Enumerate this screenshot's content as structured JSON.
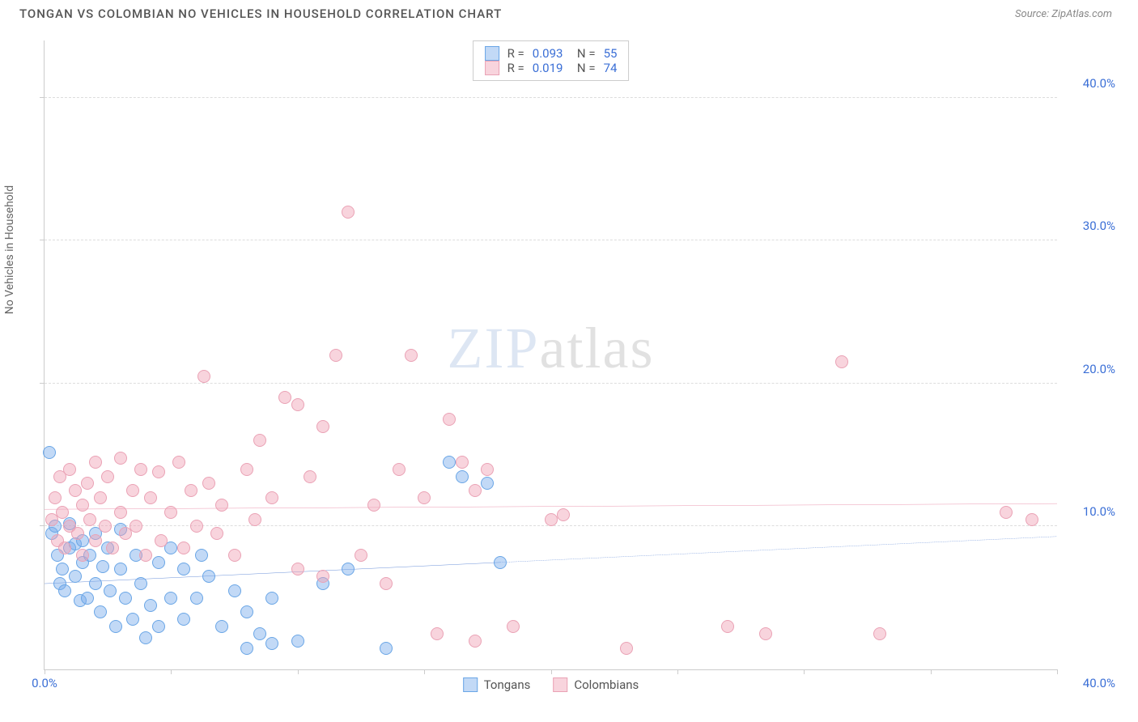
{
  "title": "TONGAN VS COLOMBIAN NO VEHICLES IN HOUSEHOLD CORRELATION CHART",
  "source": "Source: ZipAtlas.com",
  "ylabel": "No Vehicles in Household",
  "watermark_a": "ZIP",
  "watermark_b": "atlas",
  "chart": {
    "type": "scatter",
    "xlim": [
      0,
      40
    ],
    "ylim": [
      0,
      44
    ],
    "x_ticks_major": [
      0,
      40
    ],
    "x_ticks_minor": [
      5,
      10,
      15,
      20,
      25,
      30,
      35
    ],
    "y_ticks_major": [
      10,
      20,
      30,
      40
    ],
    "x_tick_labels": {
      "0": "0.0%",
      "40": "40.0%"
    },
    "y_tick_labels": {
      "10": "10.0%",
      "20": "20.0%",
      "30": "30.0%",
      "40": "40.0%"
    },
    "grid_color": "#dddddd",
    "axis_color": "#cccccc",
    "background_color": "#ffffff",
    "tick_label_color": "#3b6fd6",
    "point_radius": 8,
    "series": [
      {
        "name": "Tongans",
        "fill": "rgba(120,170,235,0.45)",
        "stroke": "#6aa6e6",
        "trend_color": "#2c63c9",
        "trend": {
          "y0": 6.0,
          "y1": 9.3,
          "solid_until_x": 18
        },
        "R": "0.093",
        "N": "55",
        "points": [
          [
            0.2,
            15.2
          ],
          [
            0.3,
            9.5
          ],
          [
            0.4,
            10.0
          ],
          [
            0.5,
            8.0
          ],
          [
            0.6,
            6.0
          ],
          [
            0.7,
            7.0
          ],
          [
            0.8,
            5.5
          ],
          [
            1.0,
            8.5
          ],
          [
            1.0,
            10.2
          ],
          [
            1.2,
            6.5
          ],
          [
            1.2,
            8.8
          ],
          [
            1.4,
            4.8
          ],
          [
            1.5,
            7.5
          ],
          [
            1.5,
            9.0
          ],
          [
            1.7,
            5.0
          ],
          [
            1.8,
            8.0
          ],
          [
            2.0,
            6.0
          ],
          [
            2.0,
            9.5
          ],
          [
            2.2,
            4.0
          ],
          [
            2.3,
            7.2
          ],
          [
            2.5,
            8.5
          ],
          [
            2.6,
            5.5
          ],
          [
            2.8,
            3.0
          ],
          [
            3.0,
            7.0
          ],
          [
            3.0,
            9.8
          ],
          [
            3.2,
            5.0
          ],
          [
            3.5,
            3.5
          ],
          [
            3.6,
            8.0
          ],
          [
            3.8,
            6.0
          ],
          [
            4.0,
            2.2
          ],
          [
            4.2,
            4.5
          ],
          [
            4.5,
            7.5
          ],
          [
            4.5,
            3.0
          ],
          [
            5.0,
            5.0
          ],
          [
            5.0,
            8.5
          ],
          [
            5.5,
            3.5
          ],
          [
            5.5,
            7.0
          ],
          [
            6.0,
            5.0
          ],
          [
            6.2,
            8.0
          ],
          [
            6.5,
            6.5
          ],
          [
            7.0,
            3.0
          ],
          [
            7.5,
            5.5
          ],
          [
            8.0,
            4.0
          ],
          [
            8.0,
            1.5
          ],
          [
            8.5,
            2.5
          ],
          [
            9.0,
            5.0
          ],
          [
            9.0,
            1.8
          ],
          [
            10.0,
            2.0
          ],
          [
            11.0,
            6.0
          ],
          [
            12.0,
            7.0
          ],
          [
            13.5,
            1.5
          ],
          [
            16.0,
            14.5
          ],
          [
            16.5,
            13.5
          ],
          [
            17.5,
            13.0
          ],
          [
            18.0,
            7.5
          ]
        ]
      },
      {
        "name": "Colombians",
        "fill": "rgba(240,160,180,0.45)",
        "stroke": "#eaa2b5",
        "trend_color": "#e36b8f",
        "trend": {
          "y0": 11.2,
          "y1": 11.6,
          "solid_until_x": 40
        },
        "R": "0.019",
        "N": "74",
        "points": [
          [
            0.3,
            10.5
          ],
          [
            0.4,
            12.0
          ],
          [
            0.5,
            9.0
          ],
          [
            0.6,
            13.5
          ],
          [
            0.7,
            11.0
          ],
          [
            0.8,
            8.5
          ],
          [
            1.0,
            10.0
          ],
          [
            1.0,
            14.0
          ],
          [
            1.2,
            12.5
          ],
          [
            1.3,
            9.5
          ],
          [
            1.5,
            11.5
          ],
          [
            1.5,
            8.0
          ],
          [
            1.7,
            13.0
          ],
          [
            1.8,
            10.5
          ],
          [
            2.0,
            14.5
          ],
          [
            2.0,
            9.0
          ],
          [
            2.2,
            12.0
          ],
          [
            2.4,
            10.0
          ],
          [
            2.5,
            13.5
          ],
          [
            2.7,
            8.5
          ],
          [
            3.0,
            14.8
          ],
          [
            3.0,
            11.0
          ],
          [
            3.2,
            9.5
          ],
          [
            3.5,
            12.5
          ],
          [
            3.6,
            10.0
          ],
          [
            3.8,
            14.0
          ],
          [
            4.0,
            8.0
          ],
          [
            4.2,
            12.0
          ],
          [
            4.5,
            13.8
          ],
          [
            4.6,
            9.0
          ],
          [
            5.0,
            11.0
          ],
          [
            5.3,
            14.5
          ],
          [
            5.5,
            8.5
          ],
          [
            5.8,
            12.5
          ],
          [
            6.0,
            10.0
          ],
          [
            6.3,
            20.5
          ],
          [
            6.5,
            13.0
          ],
          [
            6.8,
            9.5
          ],
          [
            7.0,
            11.5
          ],
          [
            7.5,
            8.0
          ],
          [
            8.0,
            14.0
          ],
          [
            8.3,
            10.5
          ],
          [
            8.5,
            16.0
          ],
          [
            9.0,
            12.0
          ],
          [
            9.5,
            19.0
          ],
          [
            10.0,
            18.5
          ],
          [
            10.0,
            7.0
          ],
          [
            10.5,
            13.5
          ],
          [
            11.0,
            6.5
          ],
          [
            11.0,
            17.0
          ],
          [
            11.5,
            22.0
          ],
          [
            12.0,
            32.0
          ],
          [
            12.5,
            8.0
          ],
          [
            13.0,
            11.5
          ],
          [
            13.5,
            6.0
          ],
          [
            14.0,
            14.0
          ],
          [
            14.5,
            22.0
          ],
          [
            15.0,
            12.0
          ],
          [
            15.5,
            2.5
          ],
          [
            16.0,
            17.5
          ],
          [
            16.5,
            14.5
          ],
          [
            17.0,
            2.0
          ],
          [
            17.0,
            12.5
          ],
          [
            17.5,
            14.0
          ],
          [
            18.5,
            3.0
          ],
          [
            20.0,
            10.5
          ],
          [
            20.5,
            10.8
          ],
          [
            23.0,
            1.5
          ],
          [
            27.0,
            3.0
          ],
          [
            28.5,
            2.5
          ],
          [
            31.5,
            21.5
          ],
          [
            33.0,
            2.5
          ],
          [
            38.0,
            11.0
          ],
          [
            39.0,
            10.5
          ]
        ]
      }
    ],
    "legend": {
      "swatch_border_blue": "#6aa6e6",
      "swatch_fill_blue": "rgba(120,170,235,0.45)",
      "swatch_border_pink": "#eaa2b5",
      "swatch_fill_pink": "rgba(240,160,180,0.45)"
    }
  }
}
